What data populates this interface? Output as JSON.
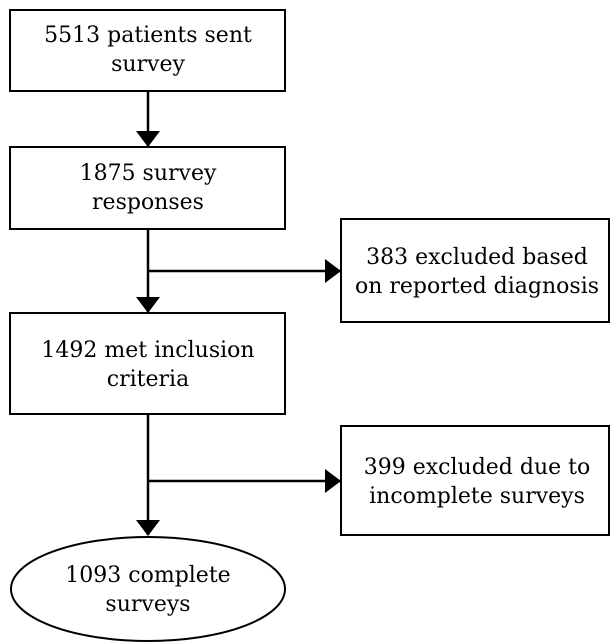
{
  "nodes": [
    {
      "lines": [
        "5513 patients sent",
        "survey"
      ]
    },
    {
      "lines": [
        "1875 survey",
        "responses"
      ]
    },
    {
      "lines": [
        "383 excluded based",
        "on reported diagnosis"
      ]
    },
    {
      "lines": [
        "1492 met inclusion",
        "criteria"
      ]
    },
    {
      "lines": [
        "399 excluded due to",
        "incomplete surveys"
      ]
    },
    {
      "lines": [
        "1093 complete",
        "surveys"
      ]
    }
  ]
}
